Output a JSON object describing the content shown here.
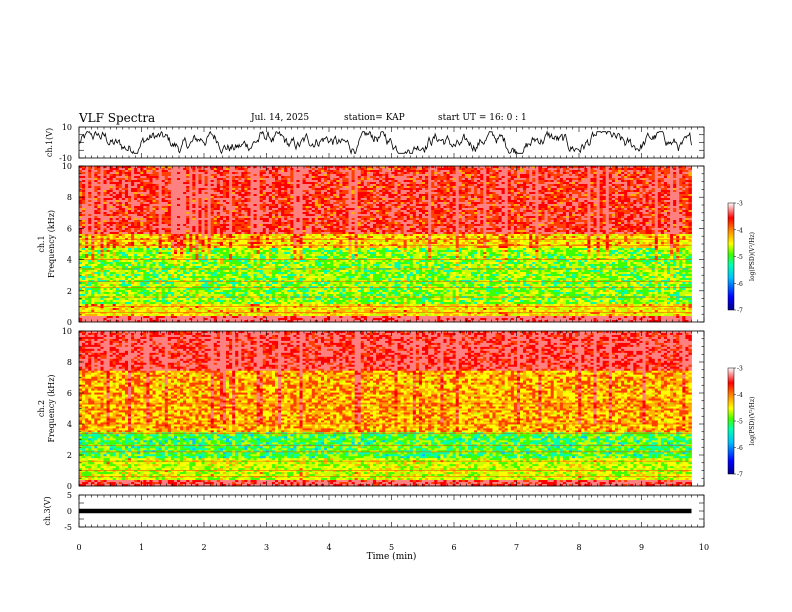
{
  "header": {
    "title": "VLF Spectra",
    "date": "Jul. 14, 2025",
    "station": "station= KAP",
    "start": "start  UT =  16: 0 : 1"
  },
  "chart_data": [
    {
      "type": "line",
      "panel": "ch1-waveform",
      "ylabel": "ch.1(V)",
      "ylim": [
        -10,
        10
      ],
      "y_ticks": [
        "10",
        "-10"
      ],
      "xlim": [
        0,
        10
      ],
      "x_data_end": 9.8,
      "description_values": {
        "mean": 0,
        "amplitude_range": [
          -6,
          6
        ]
      }
    },
    {
      "type": "heatmap",
      "panel": "ch1-spectrogram",
      "ylabel": "ch.1\nFrequency (kHz)",
      "ylim": [
        0,
        10
      ],
      "y_ticks": [
        "0",
        "2",
        "4",
        "6",
        "8",
        "10"
      ],
      "xlim": [
        0,
        10
      ],
      "x_data_end": 9.8,
      "colorbar": {
        "label": "log(PSD)(V²/Hz)",
        "range": [
          -7,
          -3
        ],
        "ticks": [
          "-3",
          "-4",
          "-5",
          "-6",
          "-7"
        ]
      },
      "bands_log_psd": [
        {
          "freq_khz": [
            0,
            0.4
          ],
          "level": -3.1
        },
        {
          "freq_khz": [
            0.4,
            1.2
          ],
          "level": -4.6
        },
        {
          "freq_khz": [
            1.2,
            4.8
          ],
          "level": -5.2
        },
        {
          "freq_khz": [
            4.8,
            5.6
          ],
          "level": -4.5
        },
        {
          "freq_khz": [
            5.6,
            10
          ],
          "level": -3.6
        }
      ]
    },
    {
      "type": "heatmap",
      "panel": "ch2-spectrogram",
      "ylabel": "ch.2\nFrequency (kHz)",
      "ylim": [
        0,
        10
      ],
      "y_ticks": [
        "0",
        "2",
        "4",
        "6",
        "8",
        "10"
      ],
      "xlim": [
        0,
        10
      ],
      "x_data_end": 9.8,
      "colorbar": {
        "label": "log(PSD)(V²/Hz)",
        "range": [
          -7,
          -3
        ],
        "ticks": [
          "-3",
          "-4",
          "-5",
          "-6",
          "-7"
        ]
      },
      "bands_log_psd": [
        {
          "freq_khz": [
            0,
            0.4
          ],
          "level": -3.3
        },
        {
          "freq_khz": [
            0.4,
            1.8
          ],
          "level": -4.9
        },
        {
          "freq_khz": [
            1.8,
            3.4
          ],
          "level": -5.4
        },
        {
          "freq_khz": [
            3.4,
            7.5
          ],
          "level": -4.3
        },
        {
          "freq_khz": [
            7.5,
            10
          ],
          "level": -3.4
        }
      ]
    },
    {
      "type": "line",
      "panel": "ch3-waveform",
      "ylabel": "ch.3(V)",
      "ylim": [
        -5,
        5
      ],
      "y_ticks": [
        "5",
        "0",
        "-5"
      ],
      "xlim": [
        0,
        10
      ],
      "x_data_end": 9.8,
      "level": [
        -0.7,
        0.7
      ],
      "xlabel": "Time (min)",
      "x_ticks": [
        "0",
        "1",
        "2",
        "3",
        "4",
        "5",
        "6",
        "7",
        "8",
        "9",
        "10"
      ]
    }
  ],
  "colors": {
    "jet": [
      "#00008b",
      "#0000ff",
      "#00c0ff",
      "#00ffb0",
      "#40ff00",
      "#c8ff00",
      "#ffff00",
      "#ffb000",
      "#ff4000",
      "#ff0000",
      "#ff8080",
      "#ffffff"
    ],
    "axis": "#000000"
  }
}
